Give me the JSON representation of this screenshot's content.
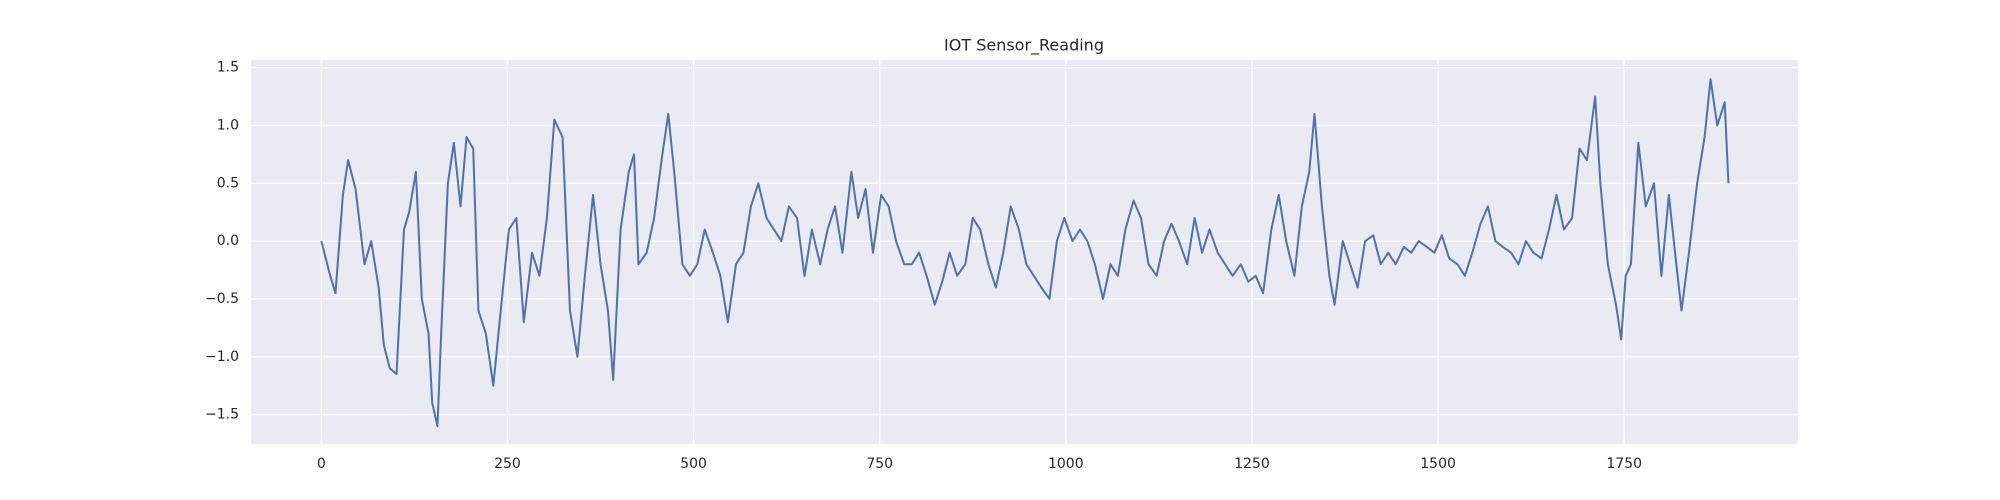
{
  "chart_data": {
    "type": "line",
    "title": "IOT Sensor_Reading",
    "x": [
      0,
      12,
      19,
      29,
      36,
      46,
      58,
      67,
      77,
      84,
      92,
      101,
      111,
      118,
      127,
      135,
      144,
      149,
      156,
      161,
      170,
      178,
      187,
      195,
      204,
      211,
      221,
      231,
      241,
      252,
      262,
      272,
      283,
      293,
      303,
      313,
      324,
      334,
      344,
      354,
      365,
      375,
      385,
      392,
      402,
      413,
      420,
      426,
      437,
      447,
      457,
      466,
      474,
      485,
      495,
      505,
      515,
      526,
      536,
      546,
      557,
      567,
      577,
      587,
      598,
      608,
      618,
      628,
      639,
      649,
      659,
      670,
      680,
      690,
      700,
      712,
      721,
      731,
      741,
      752,
      762,
      772,
      783,
      793,
      803,
      813,
      824,
      834,
      844,
      854,
      865,
      875,
      885,
      896,
      906,
      916,
      926,
      937,
      947,
      957,
      967,
      978,
      988,
      998,
      1009,
      1019,
      1029,
      1039,
      1050,
      1060,
      1070,
      1080,
      1091,
      1101,
      1111,
      1122,
      1132,
      1142,
      1152,
      1163,
      1173,
      1183,
      1193,
      1204,
      1214,
      1224,
      1235,
      1245,
      1255,
      1265,
      1276,
      1286,
      1296,
      1307,
      1317,
      1327,
      1334,
      1344,
      1354,
      1361,
      1372,
      1382,
      1392,
      1402,
      1413,
      1423,
      1433,
      1443,
      1454,
      1464,
      1474,
      1485,
      1495,
      1505,
      1515,
      1526,
      1536,
      1546,
      1557,
      1567,
      1577,
      1587,
      1598,
      1608,
      1618,
      1628,
      1639,
      1649,
      1659,
      1669,
      1680,
      1690,
      1700,
      1711,
      1718,
      1728,
      1739,
      1746,
      1752,
      1759,
      1769,
      1779,
      1790,
      1800,
      1810,
      1820,
      1827,
      1837,
      1848,
      1858,
      1866,
      1875,
      1885,
      1890
    ],
    "series": [
      {
        "name": "Sensor_Reading",
        "color": "#4c72b0",
        "values": [
          0.0,
          -0.3,
          -0.45,
          0.4,
          0.7,
          0.45,
          -0.2,
          0.0,
          -0.4,
          -0.9,
          -1.1,
          -1.15,
          0.1,
          0.25,
          0.6,
          -0.5,
          -0.8,
          -1.4,
          -1.6,
          -0.8,
          0.5,
          0.85,
          0.3,
          0.9,
          0.8,
          -0.6,
          -0.8,
          -1.25,
          -0.6,
          0.1,
          0.2,
          -0.7,
          -0.1,
          -0.3,
          0.2,
          1.05,
          0.9,
          -0.6,
          -1.0,
          -0.3,
          0.4,
          -0.2,
          -0.6,
          -1.2,
          0.1,
          0.6,
          0.75,
          -0.2,
          -0.1,
          0.2,
          0.7,
          1.1,
          0.6,
          -0.2,
          -0.3,
          -0.2,
          0.1,
          -0.1,
          -0.3,
          -0.7,
          -0.2,
          -0.1,
          0.3,
          0.5,
          0.2,
          0.1,
          0.0,
          0.3,
          0.2,
          -0.3,
          0.1,
          -0.2,
          0.1,
          0.3,
          -0.1,
          0.6,
          0.2,
          0.45,
          -0.1,
          0.4,
          0.3,
          0.0,
          -0.2,
          -0.2,
          -0.1,
          -0.3,
          -0.55,
          -0.35,
          -0.1,
          -0.3,
          -0.2,
          0.2,
          0.1,
          -0.2,
          -0.4,
          -0.1,
          0.3,
          0.1,
          -0.2,
          -0.3,
          -0.4,
          -0.5,
          0.0,
          0.2,
          0.0,
          0.1,
          0.0,
          -0.2,
          -0.5,
          -0.2,
          -0.3,
          0.1,
          0.35,
          0.2,
          -0.2,
          -0.3,
          0.0,
          0.15,
          0.0,
          -0.2,
          0.2,
          -0.1,
          0.1,
          -0.1,
          -0.2,
          -0.3,
          -0.2,
          -0.35,
          -0.3,
          -0.45,
          0.1,
          0.4,
          0.0,
          -0.3,
          0.3,
          0.6,
          1.1,
          0.3,
          -0.3,
          -0.55,
          0.0,
          -0.2,
          -0.4,
          0.0,
          0.05,
          -0.2,
          -0.1,
          -0.2,
          -0.05,
          -0.1,
          0.0,
          -0.05,
          -0.1,
          0.05,
          -0.15,
          -0.2,
          -0.3,
          -0.1,
          0.15,
          0.3,
          0.0,
          -0.05,
          -0.1,
          -0.2,
          0.0,
          -0.1,
          -0.15,
          0.1,
          0.4,
          0.1,
          0.2,
          0.8,
          0.7,
          1.25,
          0.5,
          -0.2,
          -0.55,
          -0.85,
          -0.3,
          -0.2,
          0.85,
          0.3,
          0.5,
          -0.3,
          0.4,
          -0.2,
          -0.6,
          -0.1,
          0.5,
          0.9,
          1.4,
          1.0,
          1.2,
          0.5
        ]
      }
    ],
    "xlim": [
      -94.45,
      1983.45
    ],
    "xticks": [
      0,
      250,
      500,
      750,
      1000,
      1250,
      1500,
      1750
    ],
    "ylim": [
      -1.754,
      1.566
    ],
    "yticks": [
      {
        "value": -1.5,
        "label": "−1.5"
      },
      {
        "value": -1,
        "label": "−1.0"
      },
      {
        "value": -0.5,
        "label": "−0.5"
      },
      {
        "value": 0,
        "label": "0.0"
      },
      0.5,
      {
        "value": 1,
        "label": "1.0"
      },
      1.5
    ],
    "grid": true
  }
}
